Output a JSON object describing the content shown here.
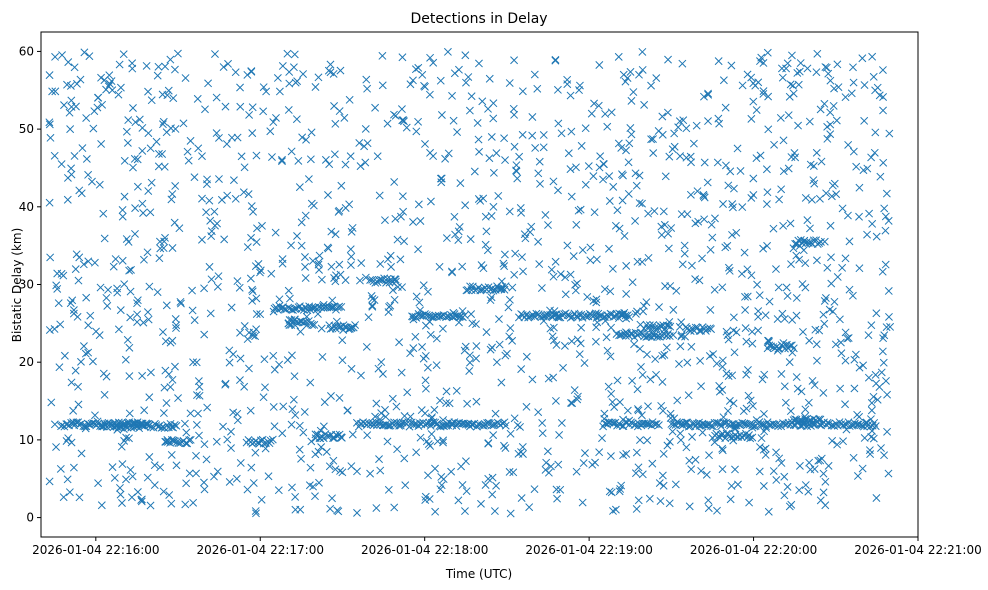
{
  "chart_data": {
    "type": "scatter",
    "title": "Detections in Delay",
    "xlabel": "Time (UTC)",
    "ylabel": "Bistatic Delay (km)",
    "marker": "x",
    "color": "#1f77b4",
    "grid": false,
    "legend": "none",
    "x_range": [
      "2026-01-04 22:15:43",
      "2026-01-04 22:20:50"
    ],
    "xlim": [
      "2026-01-04 22:15:40",
      "2026-01-04 22:21:00"
    ],
    "x_ticks": [
      "2026-01-04 22:16:00",
      "2026-01-04 22:17:00",
      "2026-01-04 22:18:00",
      "2026-01-04 22:19:00",
      "2026-01-04 22:20:00",
      "2026-01-04 22:21:00"
    ],
    "ylim": [
      -2.5,
      62.5
    ],
    "y_ticks": [
      "0",
      "10",
      "20",
      "30",
      "40",
      "50",
      "60"
    ],
    "tracks": [
      {
        "t_start": "2026-01-04 22:15:47",
        "t_end": "2026-01-04 22:16:20",
        "delay_km": 12.0
      },
      {
        "t_start": "2026-01-04 22:16:02",
        "t_end": "2026-01-04 22:16:30",
        "delay_km": 11.8
      },
      {
        "t_start": "2026-01-04 22:16:25",
        "t_end": "2026-01-04 22:16:35",
        "delay_km": 9.8
      },
      {
        "t_start": "2026-01-04 22:16:55",
        "t_end": "2026-01-04 22:17:05",
        "delay_km": 9.8
      },
      {
        "t_start": "2026-01-04 22:17:05",
        "t_end": "2026-01-04 22:17:30",
        "delay_km": 27.0
      },
      {
        "t_start": "2026-01-04 22:17:10",
        "t_end": "2026-01-04 22:17:20",
        "delay_km": 25.0
      },
      {
        "t_start": "2026-01-04 22:17:20",
        "t_end": "2026-01-04 22:17:30",
        "delay_km": 10.5
      },
      {
        "t_start": "2026-01-04 22:17:25",
        "t_end": "2026-01-04 22:17:35",
        "delay_km": 24.5
      },
      {
        "t_start": "2026-01-04 22:17:35",
        "t_end": "2026-01-04 22:18:30",
        "delay_km": 12.0
      },
      {
        "t_start": "2026-01-04 22:17:40",
        "t_end": "2026-01-04 22:17:50",
        "delay_km": 30.5
      },
      {
        "t_start": "2026-01-04 22:17:55",
        "t_end": "2026-01-04 22:18:15",
        "delay_km": 26.0
      },
      {
        "t_start": "2026-01-04 22:18:15",
        "t_end": "2026-01-04 22:18:30",
        "delay_km": 29.5
      },
      {
        "t_start": "2026-01-04 22:18:35",
        "t_end": "2026-01-04 22:19:15",
        "delay_km": 26.0
      },
      {
        "t_start": "2026-01-04 22:19:05",
        "t_end": "2026-01-04 22:19:25",
        "delay_km": 12.0
      },
      {
        "t_start": "2026-01-04 22:19:10",
        "t_end": "2026-01-04 22:19:30",
        "delay_km": 23.5
      },
      {
        "t_start": "2026-01-04 22:19:20",
        "t_end": "2026-01-04 22:19:30",
        "delay_km": 24.5
      },
      {
        "t_start": "2026-01-04 22:19:30",
        "t_end": "2026-01-04 22:20:45",
        "delay_km": 12.0
      },
      {
        "t_start": "2026-01-04 22:19:35",
        "t_end": "2026-01-04 22:19:45",
        "delay_km": 24.3
      },
      {
        "t_start": "2026-01-04 22:19:45",
        "t_end": "2026-01-04 22:20:00",
        "delay_km": 10.5
      },
      {
        "t_start": "2026-01-04 22:20:05",
        "t_end": "2026-01-04 22:20:15",
        "delay_km": 22.0
      },
      {
        "t_start": "2026-01-04 22:20:15",
        "t_end": "2026-01-04 22:20:25",
        "delay_km": 12.5
      },
      {
        "t_start": "2026-01-04 22:20:15",
        "t_end": "2026-01-04 22:20:25",
        "delay_km": 35.5
      }
    ],
    "clutter": {
      "count": 1650,
      "delay_range_km": [
        0.5,
        60
      ]
    }
  }
}
